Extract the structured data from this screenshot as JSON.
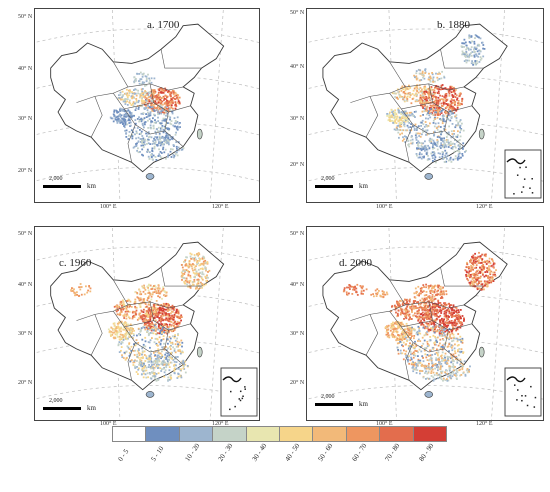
{
  "panels": [
    {
      "id": "a",
      "title": "a. 1700",
      "lat_labels": [
        "50° N",
        "40° N",
        "30° N",
        "20° N"
      ],
      "lon_labels": [
        "100° E",
        "120° E"
      ],
      "scale_value": "2,000",
      "scale_unit": "km",
      "has_inset": false
    },
    {
      "id": "b",
      "title": "b. 1880",
      "lat_labels": [
        "50° N",
        "40° N",
        "30° N",
        "20° N"
      ],
      "lon_labels": [
        "100° E",
        "120° E"
      ],
      "scale_value": "2,000",
      "scale_unit": "km",
      "has_inset": true
    },
    {
      "id": "c",
      "title": "c. 1960",
      "lat_labels": [
        "50° N",
        "40° N",
        "30° N",
        "20° N"
      ],
      "lon_labels": [
        "100° E",
        "120° E"
      ],
      "scale_value": "2,000",
      "scale_unit": "km",
      "has_inset": true
    },
    {
      "id": "d",
      "title": "d. 2000",
      "lat_labels": [
        "50° N",
        "40° N",
        "30° N",
        "20° N"
      ],
      "lon_labels": [
        "100° E",
        "120° E"
      ],
      "scale_value": "2,000",
      "scale_unit": "km",
      "has_inset": true
    }
  ],
  "legend": {
    "items": [
      {
        "label": "0 - 5",
        "color": "#ffffff"
      },
      {
        "label": "5 - 10",
        "color": "#6f8fbf"
      },
      {
        "label": "10 - 20",
        "color": "#9db5cf"
      },
      {
        "label": "20 - 30",
        "color": "#c5d3c8"
      },
      {
        "label": "30 - 40",
        "color": "#e8e6b0"
      },
      {
        "label": "40 - 50",
        "color": "#f6d58a"
      },
      {
        "label": "50 - 60",
        "color": "#f2b979"
      },
      {
        "label": "60 - 70",
        "color": "#ee9660"
      },
      {
        "label": "70 - 80",
        "color": "#e36d4d"
      },
      {
        "label": "80 - 90",
        "color": "#d43e35"
      }
    ]
  },
  "colors": {
    "border": "#3a3a3a",
    "graticule": "#bdbdbd"
  }
}
